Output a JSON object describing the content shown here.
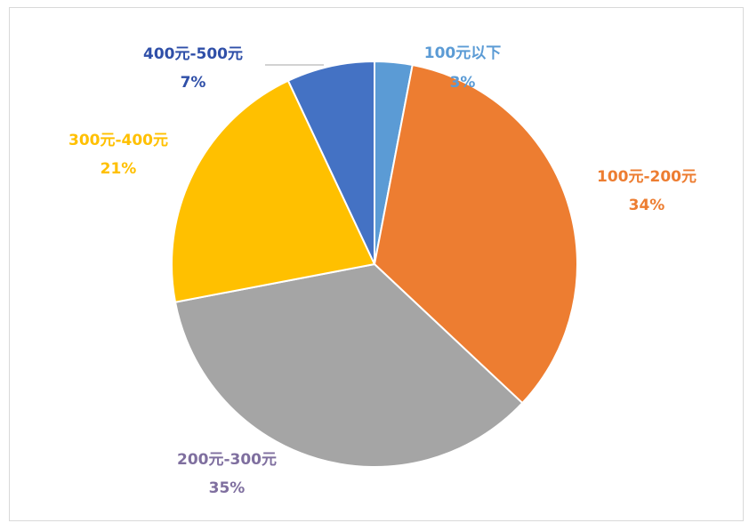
{
  "chart_data": {
    "type": "pie",
    "title": "",
    "legend": "none",
    "categories": [
      "100元以下",
      "100元-200元",
      "200元-300元",
      "300元-400元",
      "400元-500元"
    ],
    "values": [
      3,
      34,
      35,
      21,
      7
    ],
    "value_labels": [
      "3%",
      "34%",
      "35%",
      "21%",
      "7%"
    ],
    "colors": [
      "#5B9BD5",
      "#ED7D31",
      "#A5A5A5",
      "#FFC000",
      "#4472C4"
    ],
    "label_colors": [
      "#5B9BD5",
      "#ED7D31",
      "#7F6F9F",
      "#FFC000",
      "#2F4FA8"
    ]
  }
}
